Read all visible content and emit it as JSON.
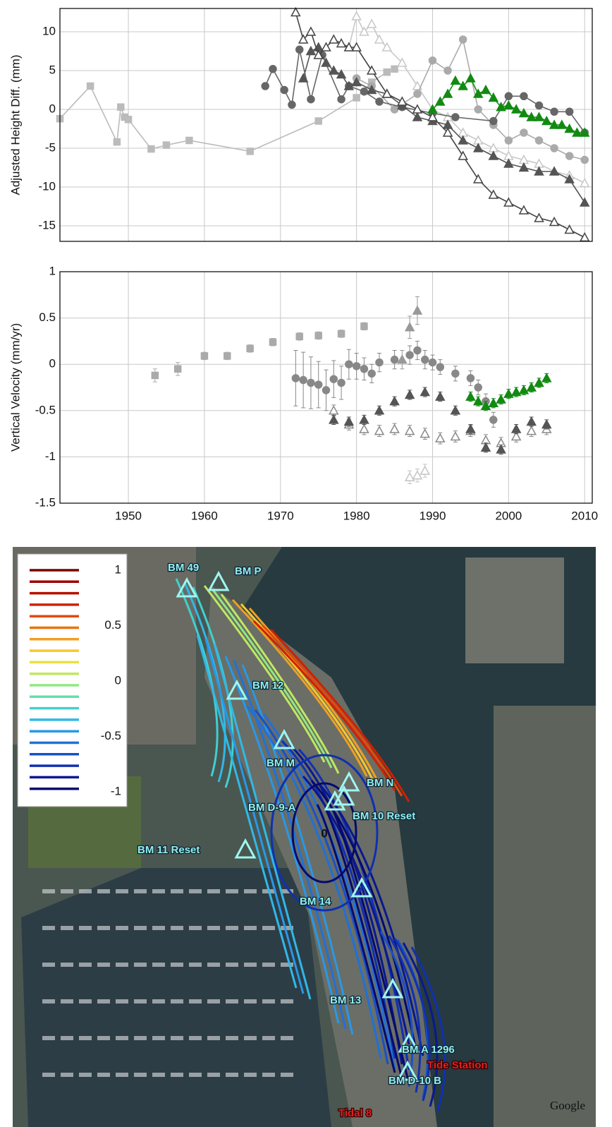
{
  "chart_data": [
    {
      "type": "line",
      "ylabel": "Adjusted Height Diff. (mm)",
      "xlim": [
        1941,
        2011
      ],
      "ylim": [
        -17,
        13
      ],
      "yticks": [
        10,
        5,
        0,
        -5,
        -10,
        -15
      ],
      "grid": true,
      "series": [
        {
          "color": "#bbbbbb",
          "marker": "square",
          "filled": true,
          "x": [
            1941,
            1945,
            1948.5,
            1949,
            1949.5,
            1950,
            1953,
            1955,
            1958,
            1966,
            1975,
            1980,
            1982,
            1984,
            1985
          ],
          "values": [
            -1.2,
            3,
            -4.2,
            0.3,
            -1,
            -1.3,
            -5.1,
            -4.6,
            -4,
            -5.4,
            -1.5,
            1.5,
            3.5,
            4.8,
            5.2
          ]
        },
        {
          "color": "#c8c8c8",
          "marker": "triangle",
          "filled": false,
          "x": [
            1979,
            1980,
            1981,
            1982,
            1983,
            1984,
            1986,
            1988,
            1990,
            1992,
            1994,
            1996,
            1998,
            2000,
            2002,
            2004,
            2006,
            2008,
            2010
          ],
          "values": [
            8,
            12,
            10,
            11,
            9,
            8,
            6,
            3,
            0,
            -1,
            -3,
            -4,
            -5,
            -6,
            -6.5,
            -7,
            -8,
            -8.5,
            -9.5
          ]
        },
        {
          "color": "#aaaaaa",
          "marker": "circle",
          "filled": true,
          "x": [
            1980,
            1982,
            1985,
            1988,
            1990,
            1992,
            1994,
            1996,
            1998,
            2000,
            2002,
            2004,
            2006,
            2008,
            2010
          ],
          "values": [
            4,
            3,
            0,
            2,
            6.3,
            5,
            9,
            0,
            -2,
            -4,
            -3,
            -4,
            -5,
            -6,
            -6.5
          ]
        },
        {
          "color": "#666666",
          "marker": "circle",
          "filled": true,
          "x": [
            1968,
            1969,
            1970.5,
            1971.5,
            1972.5,
            1974,
            1975.5,
            1978,
            1979,
            1981,
            1983,
            1986,
            1990,
            1993,
            1998,
            2000,
            2002,
            2004,
            2006,
            2008,
            2010
          ],
          "values": [
            3,
            5.2,
            2.5,
            0.6,
            7.7,
            1.3,
            7,
            1.3,
            3,
            2.3,
            1,
            0.3,
            -0.5,
            -1,
            -1.5,
            1.7,
            1.7,
            0.5,
            -0.3,
            -0.3,
            -3
          ]
        },
        {
          "color": "#555555",
          "marker": "triangle",
          "filled": true,
          "x": [
            1973,
            1974,
            1975,
            1976,
            1977,
            1978,
            1979,
            1980,
            1982,
            1984,
            1986,
            1988,
            1990,
            1992,
            1994,
            1996,
            1998,
            2000,
            2002,
            2004,
            2006,
            2008,
            2010
          ],
          "values": [
            4,
            7.5,
            8,
            6,
            5,
            4.5,
            3,
            3.5,
            2.5,
            2,
            0.5,
            -1,
            -1.5,
            -2,
            -4,
            -5,
            -6,
            -7,
            -7.5,
            -8,
            -8,
            -9,
            -12
          ]
        },
        {
          "color": "#444444",
          "marker": "triangle",
          "filled": false,
          "x": [
            1972,
            1973,
            1974,
            1975,
            1976,
            1977,
            1978,
            1979,
            1980,
            1982,
            1984,
            1986,
            1988,
            1990,
            1992,
            1994,
            1996,
            1998,
            2000,
            2002,
            2004,
            2006,
            2008,
            2010
          ],
          "values": [
            12.5,
            9,
            10,
            7,
            8,
            9,
            8.5,
            8,
            8,
            5,
            2,
            1,
            0,
            -1,
            -3,
            -6,
            -9,
            -11,
            -12,
            -13,
            -14,
            -14.5,
            -15.5,
            -16.5
          ]
        },
        {
          "color": "#128a12",
          "marker": "triangle",
          "filled": true,
          "x": [
            1990,
            1991,
            1992,
            1993,
            1994,
            1995,
            1996,
            1997,
            1998,
            1999,
            2000,
            2001,
            2002,
            2003,
            2004,
            2005,
            2006,
            2007,
            2008,
            2009,
            2010
          ],
          "values": [
            0,
            1,
            2,
            3.7,
            3,
            4,
            2,
            2.5,
            1.5,
            0.3,
            0.5,
            0,
            -0.5,
            -1,
            -1,
            -1.5,
            -2,
            -2,
            -2.5,
            -3,
            -3
          ]
        }
      ]
    },
    {
      "type": "errorbar",
      "ylabel": "Vertical Velocity (mm/yr)",
      "xlim": [
        1941,
        2011
      ],
      "ylim": [
        -1.5,
        1
      ],
      "xticks": [
        1950,
        1960,
        1970,
        1980,
        1990,
        2000,
        2010
      ],
      "yticks": [
        1,
        0.5,
        0,
        -0.5,
        -1,
        -1.5
      ],
      "grid": true,
      "series": [
        {
          "color": "#aaaaaa",
          "marker": "square",
          "filled": true,
          "x": [
            1953.5,
            1956.5,
            1960,
            1963,
            1966,
            1969,
            1972.5,
            1975,
            1978,
            1981
          ],
          "values": [
            -0.12,
            -0.05,
            0.09,
            0.09,
            0.17,
            0.24,
            0.3,
            0.31,
            0.33,
            0.41
          ],
          "errors": [
            0.07,
            0.07,
            0.04,
            0.04,
            0.04,
            0.04,
            0.04,
            0.04,
            0.04,
            0.04
          ]
        },
        {
          "color": "#888888",
          "marker": "circle",
          "filled": true,
          "x": [
            1972,
            1973,
            1974,
            1975,
            1976,
            1977,
            1978,
            1979,
            1980,
            1981,
            1982,
            1983,
            1985,
            1987,
            1988,
            1989,
            1990,
            1991,
            1993,
            1995,
            1996,
            1997,
            1998
          ],
          "values": [
            -0.15,
            -0.17,
            -0.2,
            -0.22,
            -0.28,
            -0.16,
            -0.2,
            0,
            -0.02,
            -0.05,
            -0.1,
            0.02,
            0.05,
            0.1,
            0.15,
            0.05,
            0.02,
            -0.03,
            -0.1,
            -0.15,
            -0.25,
            -0.4,
            -0.6
          ],
          "errors": [
            0.3,
            0.3,
            0.28,
            0.25,
            0.22,
            0.2,
            0.18,
            0.16,
            0.14,
            0.12,
            0.1,
            0.1,
            0.1,
            0.1,
            0.1,
            0.1,
            0.08,
            0.08,
            0.08,
            0.08,
            0.08,
            0.08,
            0.08
          ]
        },
        {
          "color": "#999999",
          "marker": "triangle",
          "filled": true,
          "x": [
            1986,
            1987,
            1988
          ],
          "values": [
            0.05,
            0.4,
            0.58
          ],
          "errors": [
            0.1,
            0.12,
            0.15
          ]
        },
        {
          "color": "#c4c4c4",
          "marker": "triangle",
          "filled": false,
          "x": [
            1987,
            1988,
            1989
          ],
          "values": [
            -1.22,
            -1.2,
            -1.15
          ],
          "errors": [
            0.07,
            0.07,
            0.07
          ]
        },
        {
          "color": "#888888",
          "marker": "triangle",
          "filled": false,
          "x": [
            1977,
            1979,
            1981,
            1983,
            1985,
            1987,
            1989,
            1991,
            1993,
            1995,
            1997,
            1999,
            2001,
            2003,
            2005
          ],
          "values": [
            -0.5,
            -0.65,
            -0.7,
            -0.72,
            -0.7,
            -0.72,
            -0.75,
            -0.8,
            -0.78,
            -0.72,
            -0.82,
            -0.85,
            -0.78,
            -0.72,
            -0.7
          ],
          "errors": [
            0.06,
            0.06,
            0.06,
            0.06,
            0.06,
            0.06,
            0.06,
            0.06,
            0.06,
            0.06,
            0.06,
            0.06,
            0.06,
            0.06,
            0.06
          ]
        },
        {
          "color": "#555555",
          "marker": "triangle",
          "filled": true,
          "x": [
            1977,
            1979,
            1981,
            1983,
            1985,
            1987,
            1989,
            1991,
            1993,
            1995,
            1997,
            1999,
            2001,
            2003,
            2005
          ],
          "values": [
            -0.6,
            -0.62,
            -0.6,
            -0.5,
            -0.4,
            -0.33,
            -0.3,
            -0.35,
            -0.5,
            -0.7,
            -0.9,
            -0.92,
            -0.7,
            -0.62,
            -0.65
          ],
          "errors": [
            0.05,
            0.05,
            0.05,
            0.05,
            0.05,
            0.05,
            0.05,
            0.05,
            0.05,
            0.05,
            0.05,
            0.05,
            0.05,
            0.05,
            0.05
          ]
        },
        {
          "color": "#128a12",
          "marker": "triangle",
          "filled": true,
          "x": [
            1995,
            1996,
            1997,
            1998,
            1999,
            2000,
            2001,
            2002,
            2003,
            2004,
            2005
          ],
          "values": [
            -0.35,
            -0.4,
            -0.45,
            -0.42,
            -0.38,
            -0.32,
            -0.3,
            -0.28,
            -0.25,
            -0.2,
            -0.15
          ],
          "errors": [
            0.05,
            0.05,
            0.05,
            0.05,
            0.05,
            0.05,
            0.05,
            0.05,
            0.05,
            0.05,
            0.05
          ]
        }
      ]
    }
  ],
  "map": {
    "colorbar": {
      "ticks": [
        1,
        0.5,
        0,
        -0.5,
        -1
      ],
      "colors": [
        "#7a0000",
        "#9c0000",
        "#b80f00",
        "#d02000",
        "#e04a0a",
        "#e8740f",
        "#f0a020",
        "#f4c830",
        "#e8e040",
        "#c0e860",
        "#90e880",
        "#60e0a8",
        "#40d0d0",
        "#30b8e8",
        "#2898e8",
        "#2070d8",
        "#1850c8",
        "#1030b0",
        "#0a1890",
        "#060a6e"
      ]
    },
    "labels": [
      "BM 49",
      "BM P",
      "BM 12",
      "BM M",
      "BM N",
      "BM D-9-A",
      "BM 10 Reset",
      "BM 11 Reset",
      "BM 14",
      "BM 13",
      "BM A 1296",
      "Tide Station",
      "BM D-10 B",
      "Tidal 8"
    ],
    "contour_label": "0",
    "credit": "Google"
  }
}
